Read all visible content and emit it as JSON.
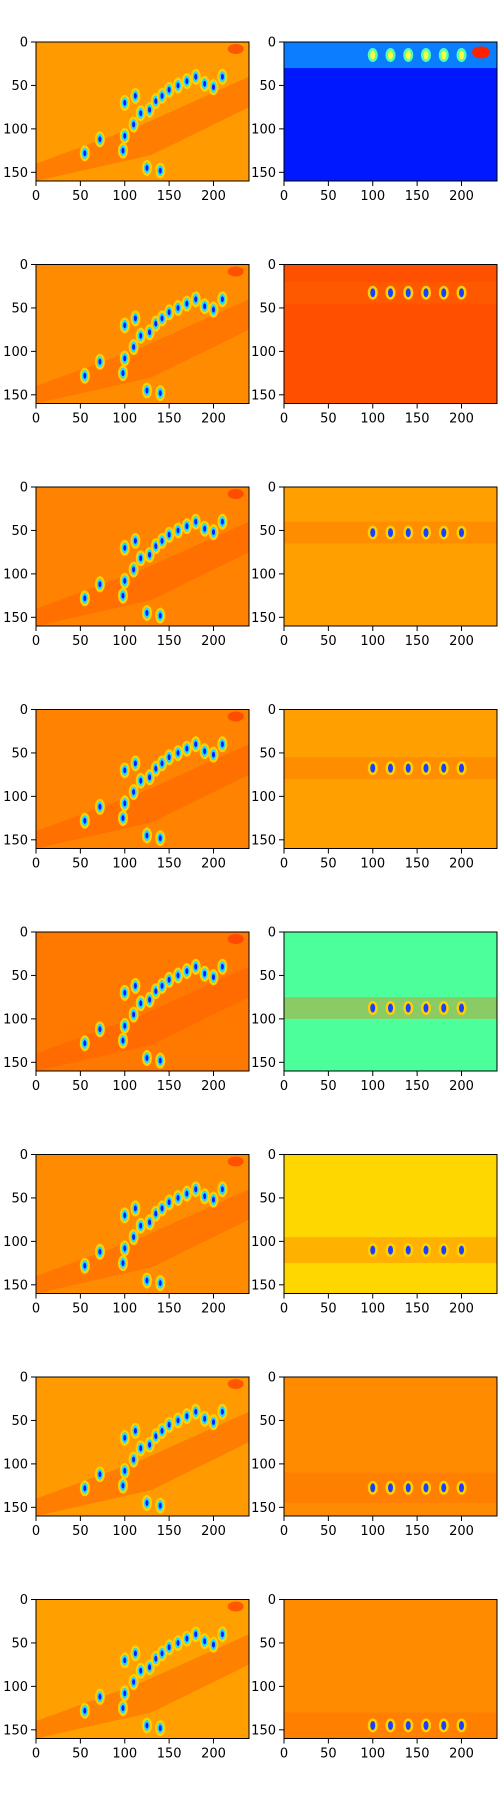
{
  "figure": {
    "rows": 8,
    "cols": 2
  },
  "axes": {
    "x_ticks": [
      "0",
      "50",
      "100",
      "150",
      "200"
    ],
    "y_ticks": [
      "0",
      "50",
      "100",
      "150"
    ]
  },
  "chart_data": {
    "type": "heatmap",
    "layout": "8 rows x 2 columns of image panels",
    "xlim": [
      0,
      240
    ],
    "ylim": [
      160,
      0
    ],
    "x_tick_values": [
      0,
      50,
      100,
      150,
      200
    ],
    "y_tick_values": [
      0,
      50,
      100,
      150
    ],
    "colormap": "jet",
    "panels": [
      {
        "row": 0,
        "col": 0,
        "background": "#ff9a00",
        "highlight_band_y": null
      },
      {
        "row": 0,
        "col": 1,
        "background": "#0018ff",
        "highlight_band_y": [
          0,
          30
        ]
      },
      {
        "row": 1,
        "col": 0,
        "background": "#ff8c00",
        "highlight_band_y": null
      },
      {
        "row": 1,
        "col": 1,
        "background": "#ff5000",
        "highlight_band_y": [
          20,
          45
        ]
      },
      {
        "row": 2,
        "col": 0,
        "background": "#ff8200",
        "highlight_band_y": null
      },
      {
        "row": 2,
        "col": 1,
        "background": "#ffa000",
        "highlight_band_y": [
          40,
          65
        ]
      },
      {
        "row": 3,
        "col": 0,
        "background": "#ff8200",
        "highlight_band_y": null
      },
      {
        "row": 3,
        "col": 1,
        "background": "#ffa000",
        "highlight_band_y": [
          55,
          80
        ]
      },
      {
        "row": 4,
        "col": 0,
        "background": "#ff7800",
        "highlight_band_y": null
      },
      {
        "row": 4,
        "col": 1,
        "background": "#4cff9a",
        "highlight_band_y": [
          75,
          100
        ]
      },
      {
        "row": 5,
        "col": 0,
        "background": "#ff8c00",
        "highlight_band_y": null
      },
      {
        "row": 5,
        "col": 1,
        "background": "#ffd700",
        "highlight_band_y": [
          95,
          125
        ]
      },
      {
        "row": 6,
        "col": 0,
        "background": "#ff9a00",
        "highlight_band_y": null
      },
      {
        "row": 6,
        "col": 1,
        "background": "#ff8c00",
        "highlight_band_y": [
          110,
          145
        ]
      },
      {
        "row": 7,
        "col": 0,
        "background": "#ffa000",
        "highlight_band_y": null
      },
      {
        "row": 7,
        "col": 1,
        "background": "#ff8c00",
        "highlight_band_y": [
          130,
          160
        ]
      }
    ]
  }
}
